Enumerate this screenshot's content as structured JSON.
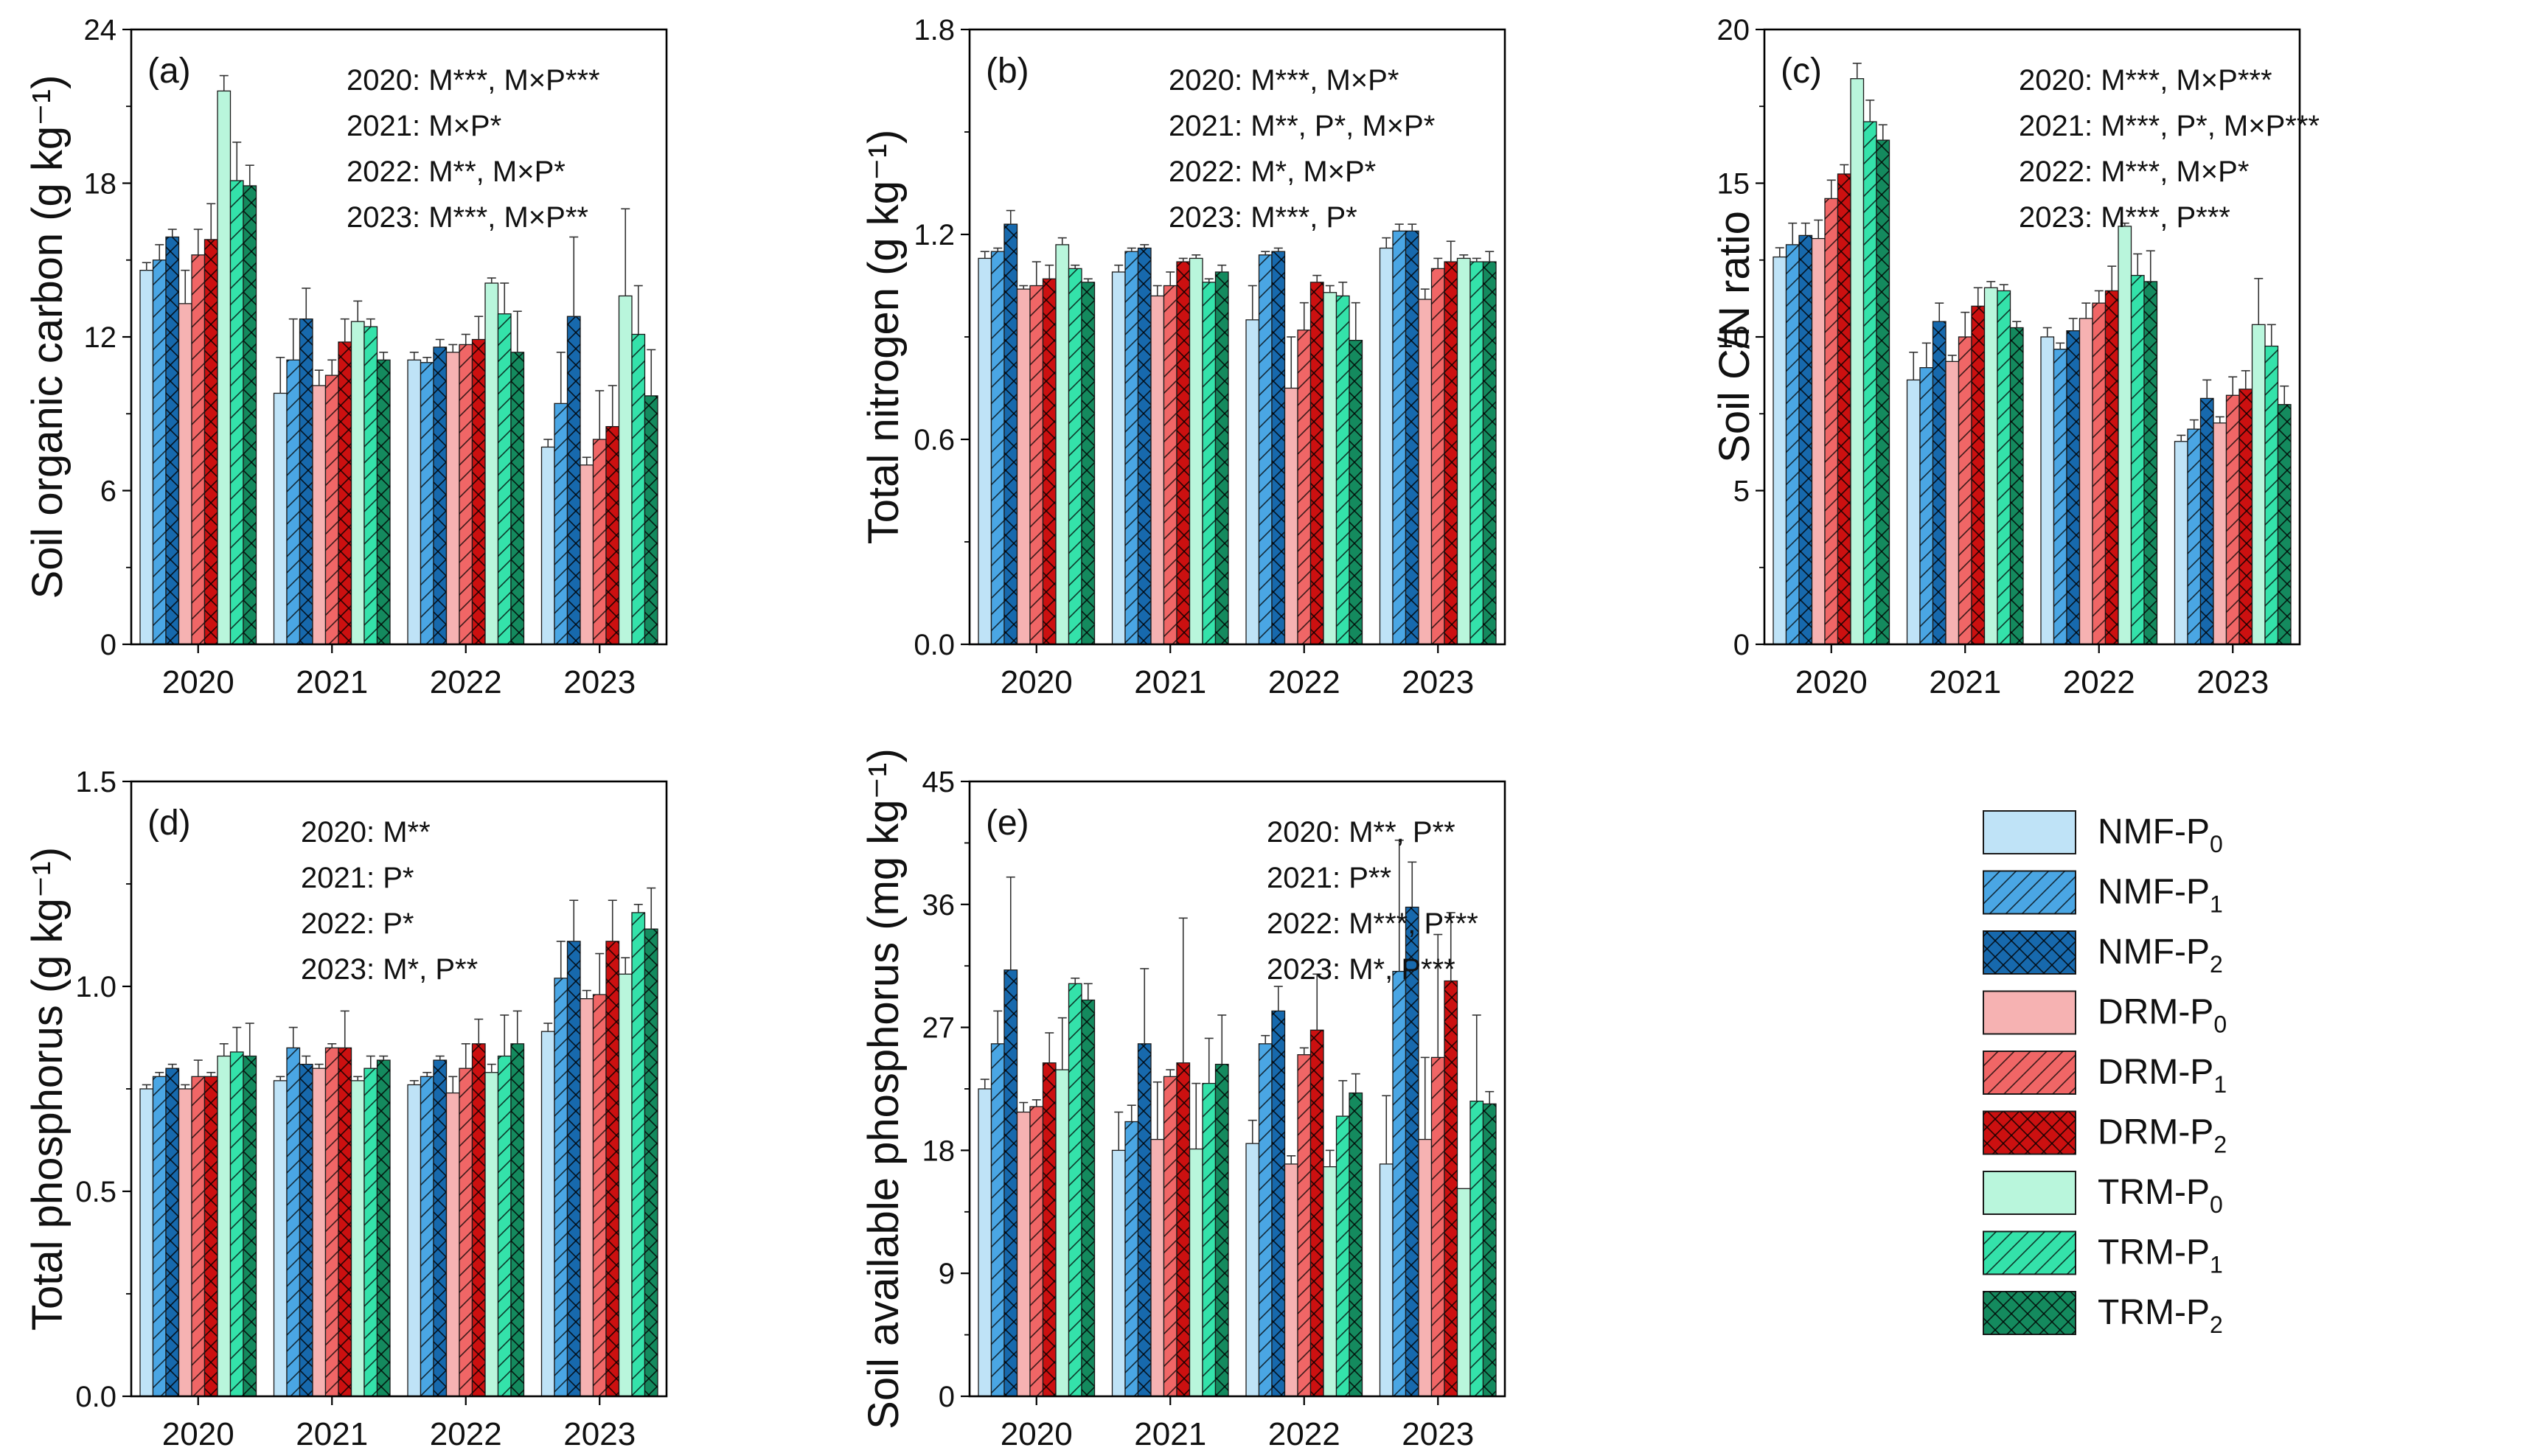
{
  "figure": {
    "years": [
      "2020",
      "2021",
      "2022",
      "2023"
    ],
    "treatments": [
      {
        "label": "NMF-P",
        "sub": "0",
        "color": "#bfe3f7",
        "hatch": "none"
      },
      {
        "label": "NMF-P",
        "sub": "1",
        "color": "#4aa6e4",
        "hatch": "diag"
      },
      {
        "label": "NMF-P",
        "sub": "2",
        "color": "#1769ad",
        "hatch": "cross"
      },
      {
        "label": "DRM-P",
        "sub": "0",
        "color": "#f6b2b2",
        "hatch": "none"
      },
      {
        "label": "DRM-P",
        "sub": "1",
        "color": "#f06666",
        "hatch": "diag"
      },
      {
        "label": "DRM-P",
        "sub": "2",
        "color": "#cc1010",
        "hatch": "cross"
      },
      {
        "label": "TRM-P",
        "sub": "0",
        "color": "#b9f6dc",
        "hatch": "none"
      },
      {
        "label": "TRM-P",
        "sub": "1",
        "color": "#34e2aa",
        "hatch": "diag"
      },
      {
        "label": "TRM-P",
        "sub": "2",
        "color": "#148a5e",
        "hatch": "cross"
      }
    ]
  },
  "chart_data": [
    {
      "type": "bar",
      "panel": "(a)",
      "ylabel": "Soil organic carbon (g kg⁻¹)",
      "ylim": [
        0,
        24
      ],
      "yticks": [
        "0",
        "6",
        "12",
        "18",
        "24"
      ],
      "categories": [
        "2020",
        "2021",
        "2022",
        "2023"
      ],
      "annotations": [
        "2020: M***, M×P***",
        "2021: M×P*",
        "2022: M**, M×P*",
        "2023: M***, M×P**"
      ],
      "series": [
        {
          "name": "NMF-P0",
          "values": [
            14.6,
            9.8,
            11.1,
            7.7
          ],
          "errors": [
            0.3,
            1.4,
            0.3,
            0.3
          ]
        },
        {
          "name": "NMF-P1",
          "values": [
            15.0,
            11.1,
            11.0,
            9.4
          ],
          "errors": [
            0.6,
            1.6,
            0.2,
            2.0
          ]
        },
        {
          "name": "NMF-P2",
          "values": [
            15.9,
            12.7,
            11.6,
            12.8
          ],
          "errors": [
            0.3,
            1.2,
            0.3,
            3.1
          ]
        },
        {
          "name": "DRM-P0",
          "values": [
            13.3,
            10.1,
            11.4,
            7.0
          ],
          "errors": [
            1.3,
            0.6,
            0.3,
            0.3
          ]
        },
        {
          "name": "DRM-P1",
          "values": [
            15.2,
            10.5,
            11.7,
            8.0
          ],
          "errors": [
            1.0,
            0.6,
            0.4,
            1.9
          ]
        },
        {
          "name": "DRM-P2",
          "values": [
            15.8,
            11.8,
            11.9,
            8.5
          ],
          "errors": [
            1.4,
            0.9,
            0.9,
            1.6
          ]
        },
        {
          "name": "TRM-P0",
          "values": [
            21.6,
            12.6,
            14.1,
            13.6
          ],
          "errors": [
            0.6,
            0.8,
            0.2,
            3.4
          ]
        },
        {
          "name": "TRM-P1",
          "values": [
            18.1,
            12.4,
            12.9,
            12.1
          ],
          "errors": [
            1.5,
            0.3,
            1.2,
            1.9
          ]
        },
        {
          "name": "TRM-P2",
          "values": [
            17.9,
            11.1,
            11.4,
            9.7
          ],
          "errors": [
            0.8,
            0.3,
            1.6,
            1.8
          ]
        }
      ]
    },
    {
      "type": "bar",
      "panel": "(b)",
      "ylabel": "Total nitrogen (g kg⁻¹)",
      "ylim": [
        0,
        1.8
      ],
      "yticks": [
        "0.0",
        "0.6",
        "1.2",
        "1.8"
      ],
      "categories": [
        "2020",
        "2021",
        "2022",
        "2023"
      ],
      "annotations": [
        "2020: M***, M×P*",
        "2021: M**, P*, M×P*",
        "2022: M*, M×P*",
        "2023: M***, P*"
      ],
      "series": [
        {
          "name": "NMF-P0",
          "values": [
            1.13,
            1.09,
            0.95,
            1.16
          ],
          "errors": [
            0.02,
            0.02,
            0.1,
            0.03
          ]
        },
        {
          "name": "NMF-P1",
          "values": [
            1.15,
            1.15,
            1.14,
            1.21
          ],
          "errors": [
            0.01,
            0.01,
            0.01,
            0.02
          ]
        },
        {
          "name": "NMF-P2",
          "values": [
            1.23,
            1.16,
            1.15,
            1.21
          ],
          "errors": [
            0.04,
            0.01,
            0.01,
            0.02
          ]
        },
        {
          "name": "DRM-P0",
          "values": [
            1.04,
            1.02,
            0.75,
            1.01
          ],
          "errors": [
            0.01,
            0.03,
            0.15,
            0.03
          ]
        },
        {
          "name": "DRM-P1",
          "values": [
            1.05,
            1.05,
            0.92,
            1.1
          ],
          "errors": [
            0.07,
            0.04,
            0.08,
            0.03
          ]
        },
        {
          "name": "DRM-P2",
          "values": [
            1.07,
            1.12,
            1.06,
            1.12
          ],
          "errors": [
            0.04,
            0.01,
            0.02,
            0.06
          ]
        },
        {
          "name": "TRM-P0",
          "values": [
            1.17,
            1.13,
            1.03,
            1.13
          ],
          "errors": [
            0.02,
            0.01,
            0.02,
            0.01
          ]
        },
        {
          "name": "TRM-P1",
          "values": [
            1.1,
            1.06,
            1.02,
            1.12
          ],
          "errors": [
            0.01,
            0.01,
            0.04,
            0.01
          ]
        },
        {
          "name": "TRM-P2",
          "values": [
            1.06,
            1.09,
            0.89,
            1.12
          ],
          "errors": [
            0.01,
            0.02,
            0.11,
            0.03
          ]
        }
      ]
    },
    {
      "type": "bar",
      "panel": "(c)",
      "ylabel": "Soil C/N ratio",
      "ylim": [
        0,
        20
      ],
      "yticks": [
        "0",
        "5",
        "10",
        "15",
        "20"
      ],
      "categories": [
        "2020",
        "2021",
        "2022",
        "2023"
      ],
      "annotations": [
        "2020: M***, M×P***",
        "2021: M***, P*, M×P***",
        "2022: M***, M×P*",
        "2023: M***, P***"
      ],
      "series": [
        {
          "name": "NMF-P0",
          "values": [
            12.6,
            8.6,
            10.0,
            6.6
          ],
          "errors": [
            0.3,
            0.9,
            0.3,
            0.2
          ]
        },
        {
          "name": "NMF-P1",
          "values": [
            13.0,
            9.0,
            9.6,
            7.0
          ],
          "errors": [
            0.7,
            0.8,
            0.2,
            0.3
          ]
        },
        {
          "name": "NMF-P2",
          "values": [
            13.3,
            10.5,
            10.2,
            8.0
          ],
          "errors": [
            0.4,
            0.6,
            0.4,
            0.6
          ]
        },
        {
          "name": "DRM-P0",
          "values": [
            13.2,
            9.2,
            10.6,
            7.2
          ],
          "errors": [
            0.6,
            0.2,
            0.5,
            0.2
          ]
        },
        {
          "name": "DRM-P1",
          "values": [
            14.5,
            10.0,
            11.1,
            8.1
          ],
          "errors": [
            0.6,
            0.8,
            0.4,
            0.6
          ]
        },
        {
          "name": "DRM-P2",
          "values": [
            15.3,
            11.0,
            11.5,
            8.3
          ],
          "errors": [
            0.3,
            0.6,
            0.8,
            0.6
          ]
        },
        {
          "name": "TRM-P0",
          "values": [
            18.4,
            11.6,
            13.6,
            10.4
          ],
          "errors": [
            0.5,
            0.2,
            0.1,
            1.5
          ]
        },
        {
          "name": "TRM-P1",
          "values": [
            17.0,
            11.5,
            12.0,
            9.7
          ],
          "errors": [
            0.7,
            0.2,
            0.7,
            0.7
          ]
        },
        {
          "name": "TRM-P2",
          "values": [
            16.4,
            10.3,
            11.8,
            7.8
          ],
          "errors": [
            0.5,
            0.2,
            1.0,
            0.6
          ]
        }
      ]
    },
    {
      "type": "bar",
      "panel": "(d)",
      "ylabel": "Total phosphorus (g kg⁻¹)",
      "ylim": [
        0,
        1.5
      ],
      "yticks": [
        "0.0",
        "0.5",
        "1.0",
        "1.5"
      ],
      "categories": [
        "2020",
        "2021",
        "2022",
        "2023"
      ],
      "annotations": [
        "2020: M**",
        "2021: P*",
        "2022: P*",
        "2023: M*, P**"
      ],
      "series": [
        {
          "name": "NMF-P0",
          "values": [
            0.75,
            0.77,
            0.76,
            0.89
          ],
          "errors": [
            0.01,
            0.01,
            0.01,
            0.02
          ]
        },
        {
          "name": "NMF-P1",
          "values": [
            0.78,
            0.85,
            0.78,
            1.02
          ],
          "errors": [
            0.01,
            0.05,
            0.01,
            0.09
          ]
        },
        {
          "name": "NMF-P2",
          "values": [
            0.8,
            0.81,
            0.82,
            1.11
          ],
          "errors": [
            0.01,
            0.02,
            0.01,
            0.1
          ]
        },
        {
          "name": "DRM-P0",
          "values": [
            0.75,
            0.8,
            0.74,
            0.97
          ],
          "errors": [
            0.01,
            0.01,
            0.04,
            0.02
          ]
        },
        {
          "name": "DRM-P1",
          "values": [
            0.78,
            0.85,
            0.8,
            0.98
          ],
          "errors": [
            0.04,
            0.01,
            0.06,
            0.1
          ]
        },
        {
          "name": "DRM-P2",
          "values": [
            0.78,
            0.85,
            0.86,
            1.11
          ],
          "errors": [
            0.01,
            0.09,
            0.06,
            0.1
          ]
        },
        {
          "name": "TRM-P0",
          "values": [
            0.83,
            0.77,
            0.79,
            1.03
          ],
          "errors": [
            0.03,
            0.01,
            0.02,
            0.04
          ]
        },
        {
          "name": "TRM-P1",
          "values": [
            0.84,
            0.8,
            0.83,
            1.18
          ],
          "errors": [
            0.06,
            0.03,
            0.1,
            0.02
          ]
        },
        {
          "name": "TRM-P2",
          "values": [
            0.83,
            0.82,
            0.86,
            1.14
          ],
          "errors": [
            0.08,
            0.01,
            0.08,
            0.1
          ]
        }
      ]
    },
    {
      "type": "bar",
      "panel": "(e)",
      "ylabel": "Soil available phosphorus (mg kg⁻¹)",
      "ylim": [
        0,
        45
      ],
      "yticks": [
        "0",
        "9",
        "18",
        "27",
        "36",
        "45"
      ],
      "categories": [
        "2020",
        "2021",
        "2022",
        "2023"
      ],
      "annotations": [
        "2020: M**, P**",
        "2021: P**",
        "2022: M***, P***",
        "2023: M*, P***"
      ],
      "series": [
        {
          "name": "NMF-P0",
          "values": [
            22.5,
            18.0,
            18.5,
            17.0
          ],
          "errors": [
            0.7,
            2.8,
            1.7,
            5.0
          ]
        },
        {
          "name": "NMF-P1",
          "values": [
            25.8,
            20.1,
            25.8,
            31.1
          ],
          "errors": [
            2.4,
            1.2,
            0.6,
            9.6
          ]
        },
        {
          "name": "NMF-P2",
          "values": [
            31.2,
            25.8,
            28.2,
            35.8
          ],
          "errors": [
            6.8,
            5.5,
            1.8,
            3.3
          ]
        },
        {
          "name": "DRM-P0",
          "values": [
            20.8,
            18.8,
            17.0,
            18.8
          ],
          "errors": [
            0.7,
            4.2,
            0.6,
            6.0
          ]
        },
        {
          "name": "DRM-P1",
          "values": [
            21.2,
            23.4,
            25.0,
            24.8
          ],
          "errors": [
            0.5,
            0.5,
            0.5,
            9.0
          ]
        },
        {
          "name": "DRM-P2",
          "values": [
            24.4,
            24.4,
            26.8,
            30.4
          ],
          "errors": [
            2.2,
            10.6,
            4.1,
            5.0
          ]
        },
        {
          "name": "TRM-P0",
          "values": [
            23.9,
            18.1,
            16.8,
            15.2
          ],
          "errors": [
            3.8,
            4.8,
            1.2,
            0.0
          ]
        },
        {
          "name": "TRM-P1",
          "values": [
            30.2,
            22.9,
            20.5,
            21.6
          ],
          "errors": [
            0.4,
            3.3,
            2.6,
            6.3
          ]
        },
        {
          "name": "TRM-P2",
          "values": [
            29.0,
            24.3,
            22.2,
            21.4
          ],
          "errors": [
            1.2,
            3.6,
            1.4,
            0.9
          ]
        }
      ]
    }
  ]
}
